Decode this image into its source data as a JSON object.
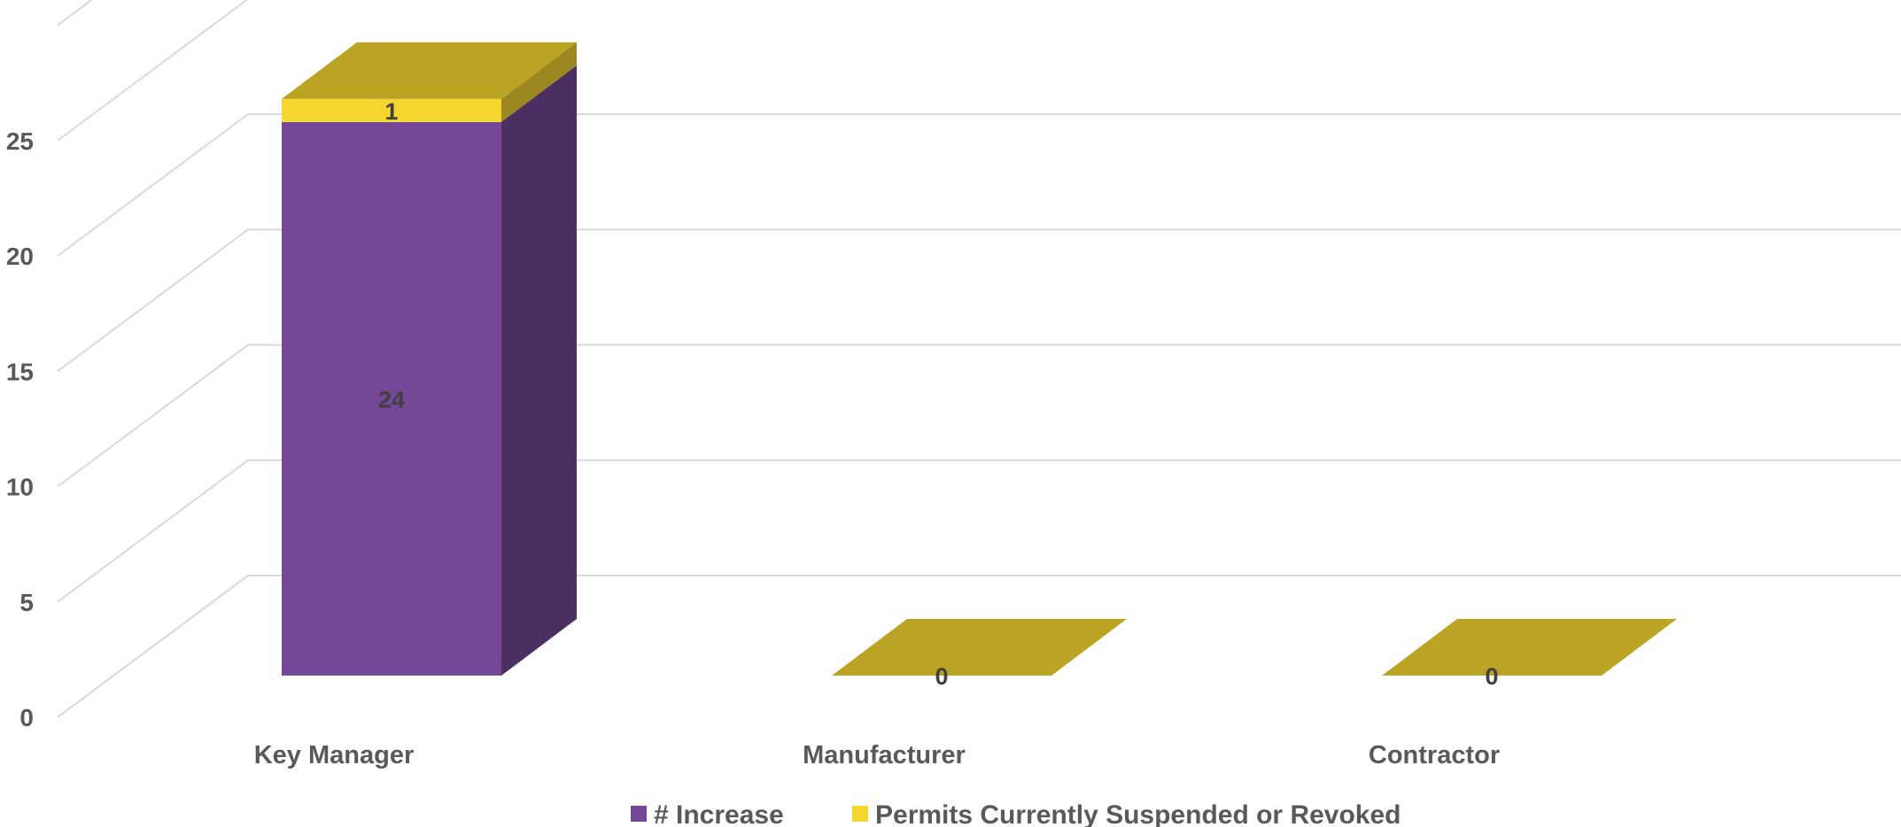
{
  "chart_data": {
    "type": "bar",
    "stacked": true,
    "three_d": true,
    "title": "",
    "xlabel": "",
    "ylabel": "",
    "categories": [
      "Key Manager",
      "Manufacturer",
      "Contractor"
    ],
    "series": [
      {
        "name": "# Increase",
        "values": [
          24,
          0,
          0
        ],
        "color": "#744896"
      },
      {
        "name": "Permits Currently Suspended or Revoked",
        "values": [
          1,
          0,
          0
        ],
        "color": "#F5D62E"
      }
    ],
    "data_labels": [
      [
        "24",
        "",
        ""
      ],
      [
        "1",
        "0",
        "0"
      ]
    ],
    "ylim": [
      0,
      25
    ],
    "yticks": [
      0,
      5,
      10,
      15,
      20,
      25
    ],
    "grid": true,
    "legend": "bottom"
  }
}
